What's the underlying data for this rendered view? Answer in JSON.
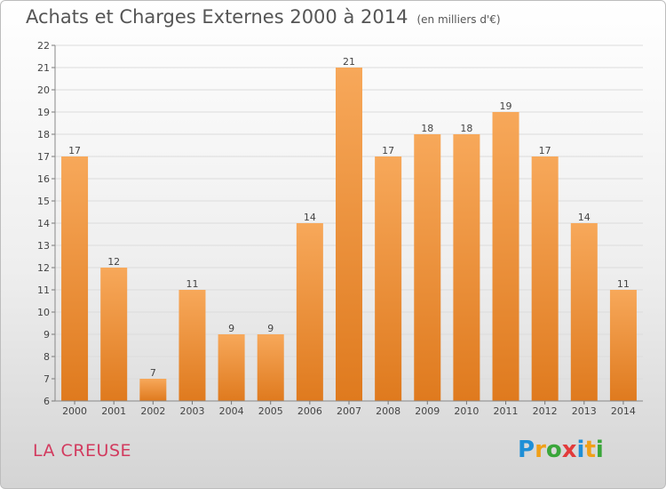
{
  "header": {
    "title": "Achats et Charges Externes 2000 à 2014",
    "unit_note": "(en milliers d'€)"
  },
  "footer": {
    "region": "LA CREUSE"
  },
  "brand": {
    "letters": [
      "P",
      "r",
      "o",
      "x",
      "i",
      "t",
      "i"
    ],
    "letter_colors": [
      "#1f8fd6",
      "#f0a018",
      "#3aa63a",
      "#e23b3b",
      "#1f8fd6",
      "#f0a018",
      "#3aa63a"
    ]
  },
  "colors": {
    "bar_light": "#f7a85a",
    "bar_dark": "#df7a1e",
    "axis_text": "#444444",
    "grid": "#dcdcdc"
  },
  "chart_data": {
    "type": "bar",
    "title": "Achats et Charges Externes 2000 à 2014",
    "ylabel": "",
    "xlabel": "",
    "categories": [
      "2000",
      "2001",
      "2002",
      "2003",
      "2004",
      "2005",
      "2006",
      "2007",
      "2008",
      "2009",
      "2010",
      "2011",
      "2012",
      "2013",
      "2014"
    ],
    "values": [
      17,
      12,
      7,
      11,
      9,
      9,
      14,
      21,
      17,
      18,
      18,
      19,
      17,
      14,
      11
    ],
    "ylim": [
      6,
      22
    ],
    "yticks": [
      6,
      7,
      8,
      9,
      10,
      11,
      12,
      13,
      14,
      15,
      16,
      17,
      18,
      19,
      20,
      21,
      22
    ],
    "grid": true,
    "data_labels": true
  }
}
